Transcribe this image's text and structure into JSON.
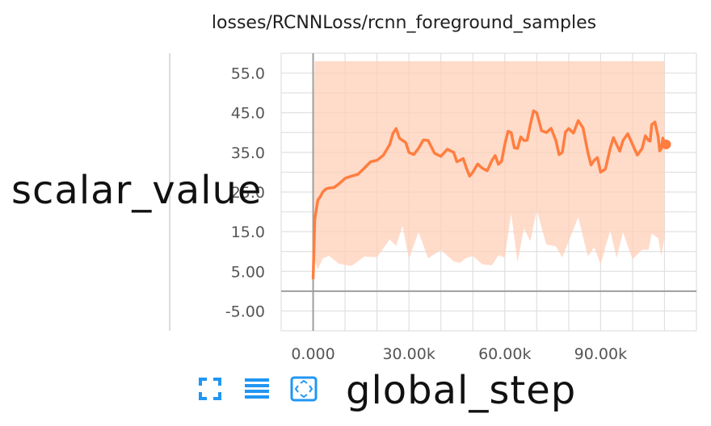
{
  "chart_data": {
    "type": "line",
    "title": "losses/RCNNLoss/rcnn_foreground_samples",
    "xlabel": "global_step",
    "ylabel": "scalar_value",
    "xlim": [
      -10000,
      120000
    ],
    "ylim": [
      -10,
      60
    ],
    "x_ticks": [
      0,
      30000,
      60000,
      90000
    ],
    "x_tick_labels": [
      "0.000",
      "30.00k",
      "60.00k",
      "90.00k"
    ],
    "y_ticks": [
      -5,
      5,
      15,
      25,
      35,
      45,
      55
    ],
    "y_tick_labels": [
      "-5.00",
      "5.00",
      "15.0",
      "25.0",
      "35.0",
      "45.0",
      "55.0"
    ],
    "grid": true,
    "series": [
      {
        "color": "#ff7e3f",
        "band_color": "#ffcfb8",
        "x": [
          0,
          500,
          1500,
          3000,
          5000,
          8000,
          12000,
          16000,
          20000,
          24000,
          26000,
          28000,
          30000,
          33000,
          36000,
          40000,
          44000,
          46000,
          48000,
          50000,
          53000,
          56000,
          58000,
          60000,
          62000,
          64000,
          66000,
          68000,
          70000,
          73000,
          76000,
          78000,
          80000,
          83000,
          86000,
          88000,
          90000,
          93000,
          95000,
          97000,
          100000,
          103000,
          105000,
          106000,
          108000,
          109000,
          110000
        ],
        "values": [
          3,
          18,
          23,
          25,
          26,
          27,
          29,
          31,
          33,
          37,
          41,
          38,
          35,
          36,
          38,
          34,
          35,
          33,
          31,
          30,
          31,
          33,
          32,
          37,
          40,
          36,
          38,
          42,
          45,
          40,
          38,
          35,
          41,
          43,
          35,
          33,
          30,
          36,
          37,
          38,
          37,
          36,
          38,
          42,
          39,
          36,
          37
        ]
      }
    ]
  },
  "controls": {
    "icons": [
      "fullscreen-icon",
      "data-table-icon",
      "fit-domain-icon"
    ],
    "accent": "#2196f3"
  }
}
